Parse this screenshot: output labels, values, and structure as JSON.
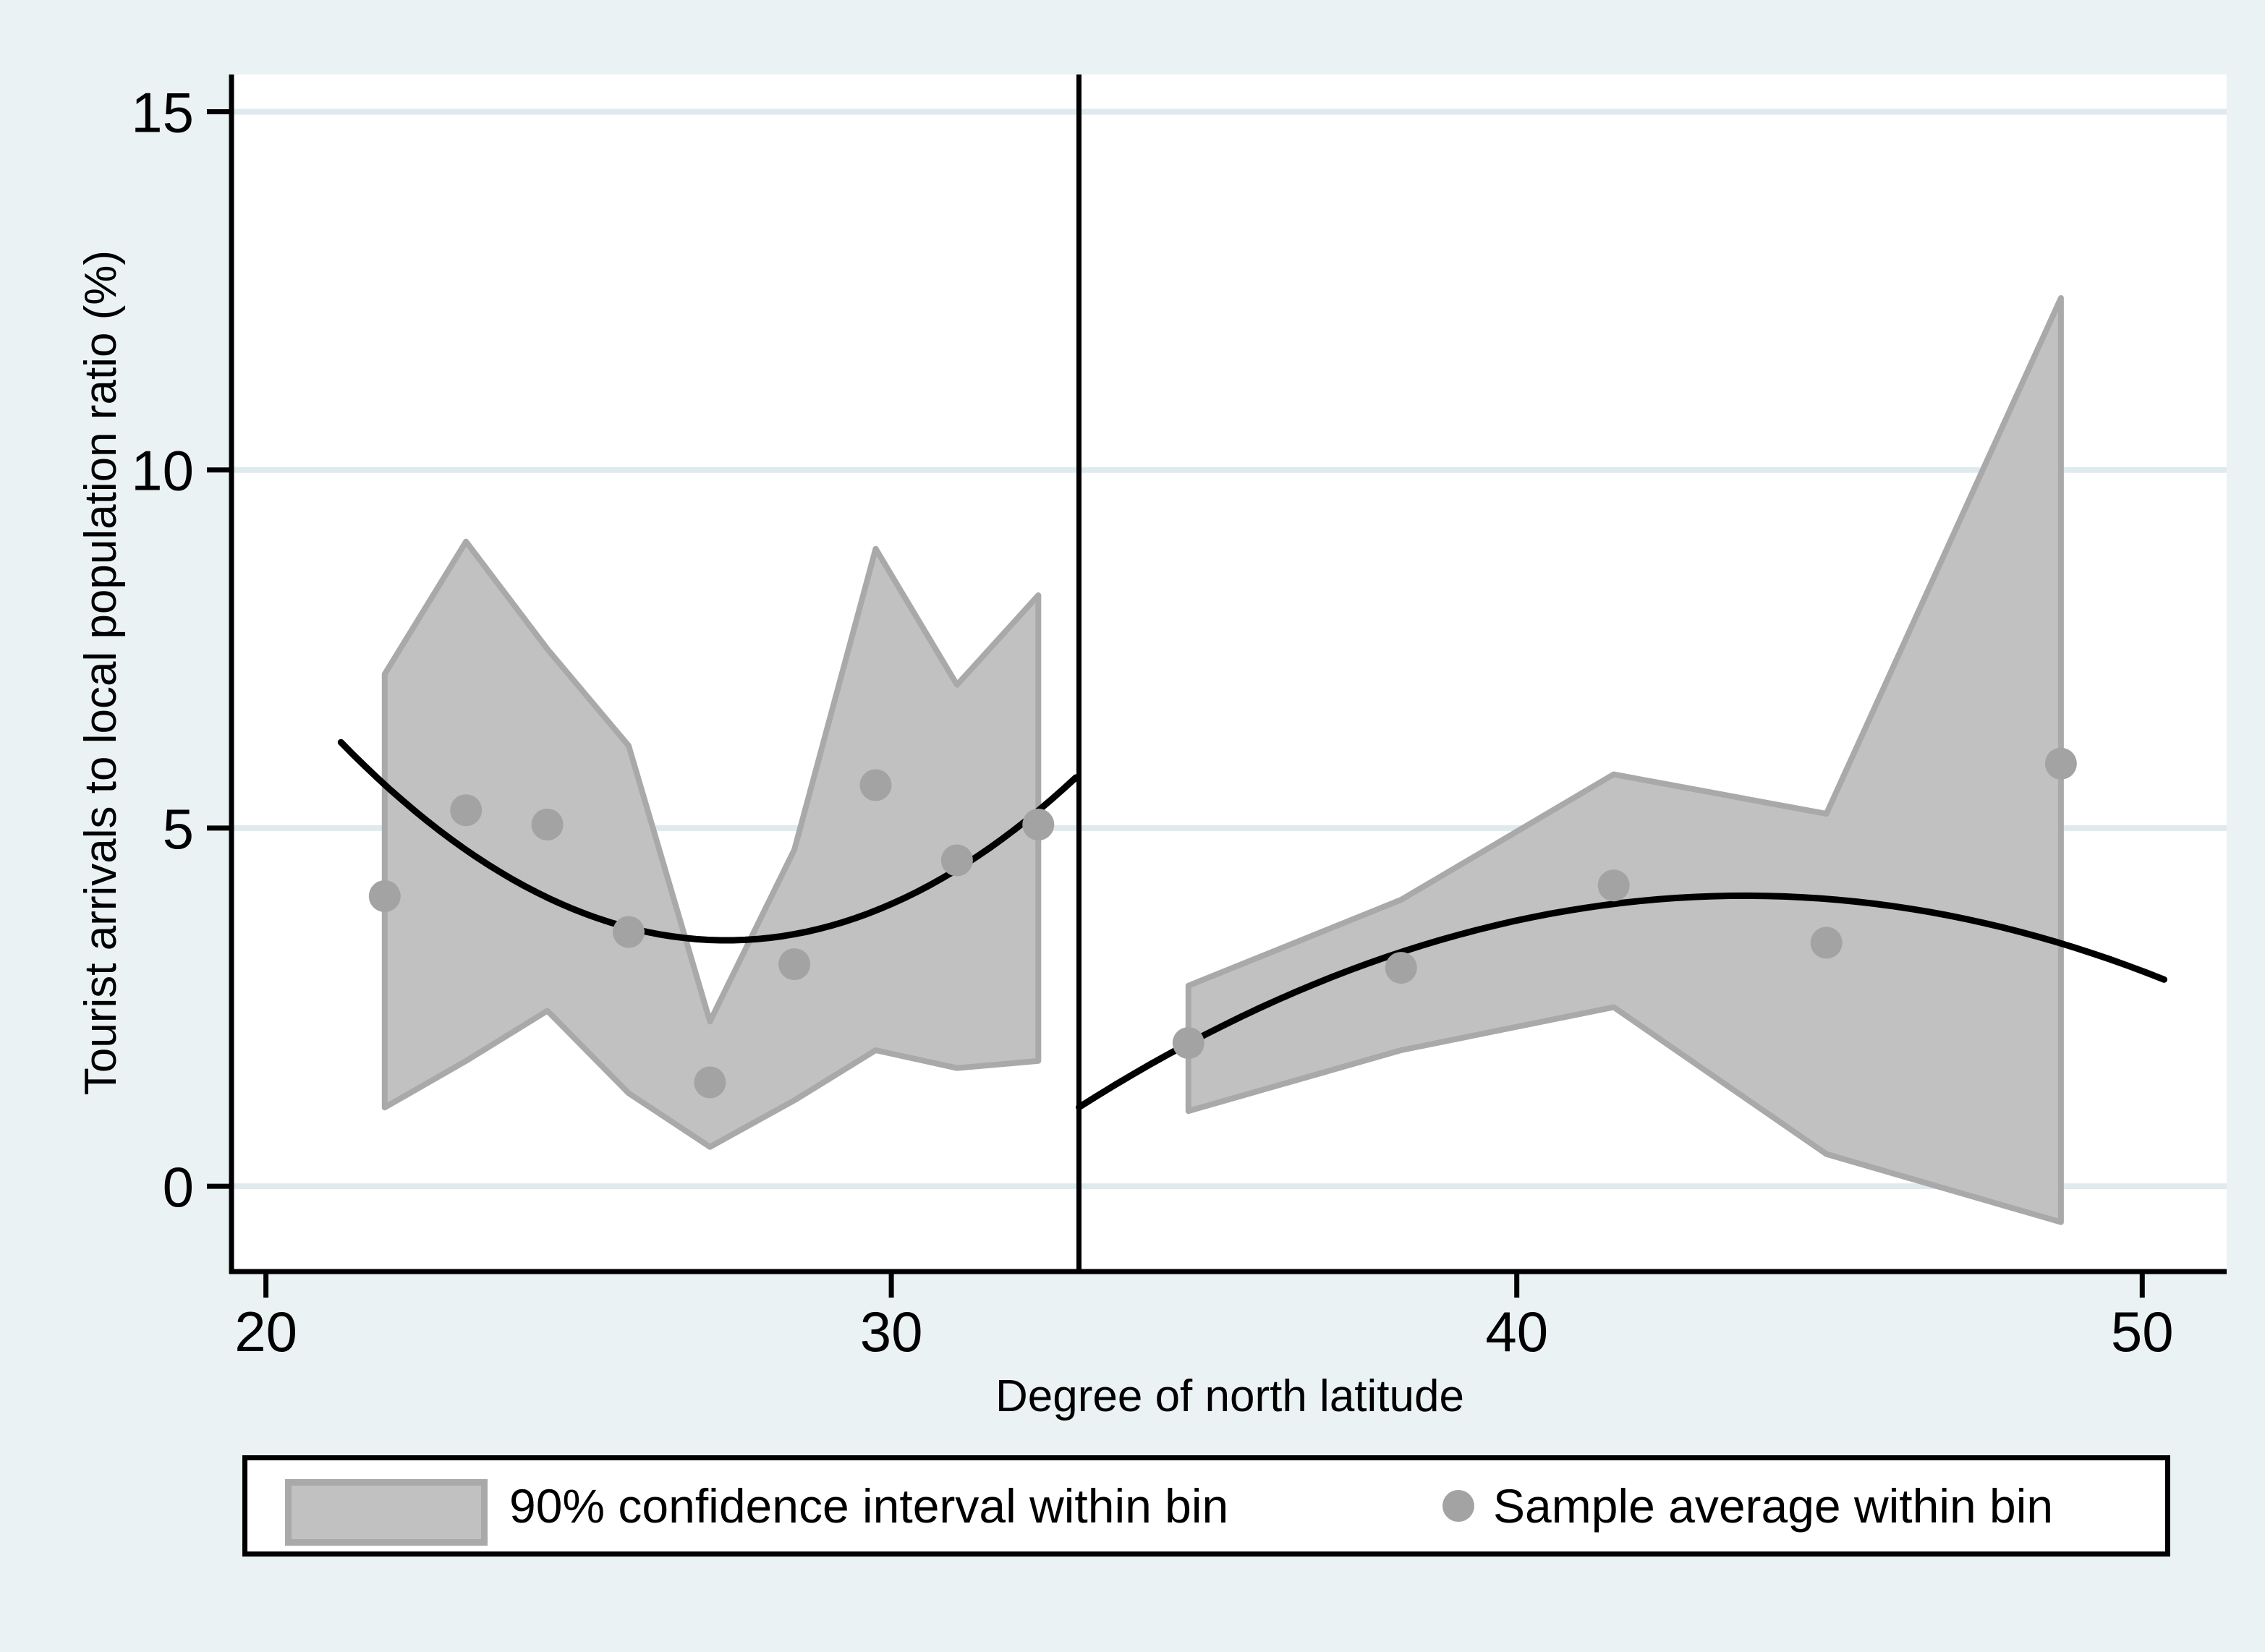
{
  "figure": {
    "background": "#eaf2f3",
    "plot_background": "#ffffff"
  },
  "chart_data": {
    "type": "area",
    "subtype": "regression-discontinuity binned scatter with 90% CI band and quadratic fits",
    "title": "",
    "xlabel": "Degree of north latitude",
    "ylabel": "Tourist arrivals to local population ratio (%)",
    "x_ticks": [
      20,
      30,
      40,
      50
    ],
    "y_ticks": [
      0,
      5,
      10,
      15
    ],
    "xlim": [
      19.45,
      51.35
    ],
    "ylim": [
      -1.19,
      15.52
    ],
    "grid": "horizontal",
    "cutoff_x": 33,
    "legend_position": "bottom",
    "segments": [
      {
        "name": "left",
        "bins": [
          21.9,
          23.2,
          24.5,
          25.8,
          27.1,
          28.45,
          29.75,
          31.05,
          32.35
        ],
        "mean": [
          4.05,
          5.25,
          5.05,
          3.55,
          1.45,
          3.1,
          5.6,
          4.55,
          5.05
        ],
        "ci_upper": [
          7.15,
          9.0,
          7.5,
          6.15,
          2.3,
          4.7,
          8.9,
          7.0,
          8.25
        ],
        "ci_lower": [
          1.1,
          1.75,
          2.45,
          1.3,
          0.55,
          1.2,
          1.9,
          1.65,
          1.75
        ],
        "fit_quadratic": {
          "a": 0.0728,
          "b": -3.984,
          "c": 57.94,
          "domain": [
            21.2,
            32.95
          ]
        }
      },
      {
        "name": "right",
        "bins": [
          34.75,
          38.15,
          41.55,
          44.95,
          48.7
        ],
        "mean": [
          2.0,
          3.05,
          4.2,
          3.4,
          5.9
        ],
        "ci_upper": [
          2.8,
          4.0,
          5.75,
          5.2,
          12.4
        ],
        "ci_lower": [
          1.05,
          1.9,
          2.5,
          0.45,
          -0.5
        ],
        "fit_quadratic": {
          "a": -0.02605,
          "b": 2.274,
          "c": -45.57,
          "domain": [
            33.0,
            50.35
          ]
        }
      }
    ],
    "colors": {
      "band_fill": "#c1c1c1",
      "band_edge": "#a9a9a9",
      "marker": "#a3a3a3",
      "fit_line": "#000000",
      "cutoff_line": "#000000",
      "grid_line": "#dfeaee",
      "axis": "#000000"
    }
  },
  "axes": {
    "y_title": "Tourist arrivals to local population ratio (%)",
    "x_title": "Degree of north latitude"
  },
  "legend": {
    "ci_label": "90% confidence interval within bin",
    "marker_label": "Sample average within bin"
  }
}
